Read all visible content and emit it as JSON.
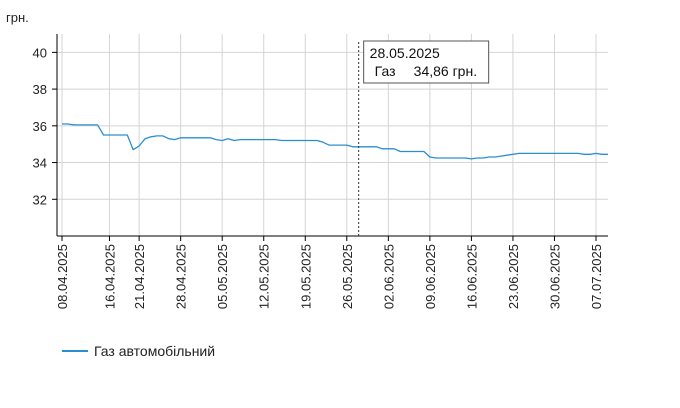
{
  "chart_data": {
    "type": "line",
    "unit_label": "грн.",
    "ylim": [
      30,
      41
    ],
    "yticks": [
      32,
      34,
      36,
      38,
      40
    ],
    "grid": true,
    "xticks": [
      "08.04.2025",
      "16.04.2025",
      "21.04.2025",
      "28.04.2025",
      "05.05.2025",
      "12.05.2025",
      "19.05.2025",
      "26.05.2025",
      "02.06.2025",
      "09.06.2025",
      "16.06.2025",
      "23.06.2025",
      "30.06.2025",
      "07.07.2025"
    ],
    "colors": {
      "series": "#2a8fd0",
      "grid": "#d4d4d4",
      "axis": "#000000"
    },
    "series": [
      {
        "name": "Газ автомобільний",
        "points": [
          [
            "2025-04-08",
            36.1
          ],
          [
            "2025-04-09",
            36.1
          ],
          [
            "2025-04-10",
            36.05
          ],
          [
            "2025-04-11",
            36.05
          ],
          [
            "2025-04-12",
            36.05
          ],
          [
            "2025-04-13",
            36.05
          ],
          [
            "2025-04-14",
            36.05
          ],
          [
            "2025-04-15",
            35.5
          ],
          [
            "2025-04-16",
            35.5
          ],
          [
            "2025-04-17",
            35.5
          ],
          [
            "2025-04-18",
            35.5
          ],
          [
            "2025-04-19",
            35.5
          ],
          [
            "2025-04-20",
            34.7
          ],
          [
            "2025-04-21",
            34.9
          ],
          [
            "2025-04-22",
            35.3
          ],
          [
            "2025-04-23",
            35.4
          ],
          [
            "2025-04-24",
            35.45
          ],
          [
            "2025-04-25",
            35.45
          ],
          [
            "2025-04-26",
            35.3
          ],
          [
            "2025-04-27",
            35.25
          ],
          [
            "2025-04-28",
            35.35
          ],
          [
            "2025-04-29",
            35.35
          ],
          [
            "2025-04-30",
            35.35
          ],
          [
            "2025-05-01",
            35.35
          ],
          [
            "2025-05-02",
            35.35
          ],
          [
            "2025-05-03",
            35.35
          ],
          [
            "2025-05-04",
            35.25
          ],
          [
            "2025-05-05",
            35.2
          ],
          [
            "2025-05-06",
            35.3
          ],
          [
            "2025-05-07",
            35.2
          ],
          [
            "2025-05-08",
            35.25
          ],
          [
            "2025-05-09",
            35.25
          ],
          [
            "2025-05-10",
            35.25
          ],
          [
            "2025-05-11",
            35.25
          ],
          [
            "2025-05-12",
            35.25
          ],
          [
            "2025-05-13",
            35.25
          ],
          [
            "2025-05-14",
            35.25
          ],
          [
            "2025-05-15",
            35.2
          ],
          [
            "2025-05-16",
            35.2
          ],
          [
            "2025-05-17",
            35.2
          ],
          [
            "2025-05-18",
            35.2
          ],
          [
            "2025-05-19",
            35.2
          ],
          [
            "2025-05-20",
            35.2
          ],
          [
            "2025-05-21",
            35.2
          ],
          [
            "2025-05-22",
            35.1
          ],
          [
            "2025-05-23",
            34.95
          ],
          [
            "2025-05-24",
            34.95
          ],
          [
            "2025-05-25",
            34.95
          ],
          [
            "2025-05-26",
            34.95
          ],
          [
            "2025-05-27",
            34.86
          ],
          [
            "2025-05-28",
            34.86
          ],
          [
            "2025-05-29",
            34.86
          ],
          [
            "2025-05-30",
            34.86
          ],
          [
            "2025-05-31",
            34.86
          ],
          [
            "2025-06-01",
            34.75
          ],
          [
            "2025-06-02",
            34.75
          ],
          [
            "2025-06-03",
            34.75
          ],
          [
            "2025-06-04",
            34.6
          ],
          [
            "2025-06-05",
            34.6
          ],
          [
            "2025-06-06",
            34.6
          ],
          [
            "2025-06-07",
            34.6
          ],
          [
            "2025-06-08",
            34.6
          ],
          [
            "2025-06-09",
            34.3
          ],
          [
            "2025-06-10",
            34.25
          ],
          [
            "2025-06-11",
            34.25
          ],
          [
            "2025-06-12",
            34.25
          ],
          [
            "2025-06-13",
            34.25
          ],
          [
            "2025-06-14",
            34.25
          ],
          [
            "2025-06-15",
            34.25
          ],
          [
            "2025-06-16",
            34.2
          ],
          [
            "2025-06-17",
            34.25
          ],
          [
            "2025-06-18",
            34.25
          ],
          [
            "2025-06-19",
            34.3
          ],
          [
            "2025-06-20",
            34.3
          ],
          [
            "2025-06-21",
            34.35
          ],
          [
            "2025-06-22",
            34.4
          ],
          [
            "2025-06-23",
            34.45
          ],
          [
            "2025-06-24",
            34.5
          ],
          [
            "2025-06-25",
            34.5
          ],
          [
            "2025-06-26",
            34.5
          ],
          [
            "2025-06-27",
            34.5
          ],
          [
            "2025-06-28",
            34.5
          ],
          [
            "2025-06-29",
            34.5
          ],
          [
            "2025-06-30",
            34.5
          ],
          [
            "2025-07-01",
            34.5
          ],
          [
            "2025-07-02",
            34.5
          ],
          [
            "2025-07-03",
            34.5
          ],
          [
            "2025-07-04",
            34.5
          ],
          [
            "2025-07-05",
            34.45
          ],
          [
            "2025-07-06",
            34.45
          ],
          [
            "2025-07-07",
            34.5
          ],
          [
            "2025-07-08",
            34.45
          ],
          [
            "2025-07-09",
            34.45
          ]
        ]
      }
    ],
    "tooltip": {
      "date": "28.05.2025",
      "series_label": "Газ",
      "value_text": "34,86 грн."
    }
  }
}
